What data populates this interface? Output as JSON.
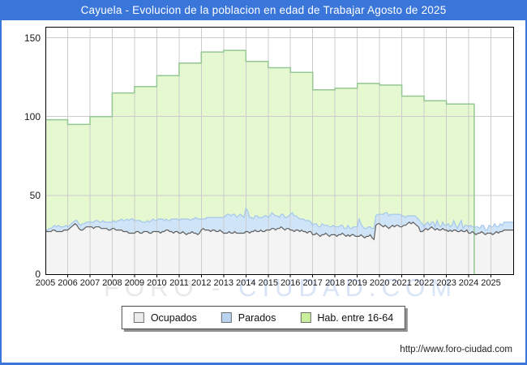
{
  "window": {
    "title": "Cayuela - Evolucion de la poblacion en edad de Trabajar Agosto de 2025"
  },
  "watermark": {
    "left": "FORO",
    "dash": "-",
    "right": "CIUDAD.COM"
  },
  "footer": {
    "url": "http://www.foro-ciudad.com"
  },
  "colors": {
    "banner": "#3a75d9",
    "grid": "#cccccc",
    "frame": "#000000",
    "hab_fill": "#e6f8d0",
    "hab_line": "#94c794",
    "parados_fill": "#cfe4f7",
    "parados_line": "#a4c7ec",
    "ocupados_fill": "#f4f4f4",
    "ocupados_line": "#5f5f5f"
  },
  "chart_data": {
    "type": "area",
    "title": "Cayuela - Evolucion de la poblacion en edad de Trabajar Agosto de 2025",
    "xlabel": "",
    "ylabel": "",
    "xlim": [
      2005,
      2026
    ],
    "ylim": [
      0,
      157
    ],
    "grid": true,
    "legend_position": "bottom-center",
    "y_ticks": [
      0,
      50,
      100,
      150
    ],
    "x_tick_labels": [
      "2005",
      "2006",
      "2007",
      "2008",
      "2009",
      "2010",
      "2011",
      "2012",
      "2013",
      "2014",
      "2015",
      "2016",
      "2017",
      "2018",
      "2019",
      "2020",
      "2021",
      "2022",
      "2023",
      "2024",
      "2025"
    ],
    "legend": [
      {
        "label": "Ocupados",
        "fill": "#ececec",
        "stroke": "#6e6e6e"
      },
      {
        "label": "Parados",
        "fill": "#b9d3f0",
        "stroke": "#6e6e6e"
      },
      {
        "label": "Hab. entre 16-64",
        "fill": "#c9ee9d",
        "stroke": "#6e6e6e"
      }
    ],
    "series": [
      {
        "name": "Hab. entre 16-64",
        "type": "step-annual",
        "start_year": 2005,
        "end_x": 2024.25,
        "fill": "#e6f8d0",
        "stroke": "#94c794",
        "values": [
          98,
          95,
          100,
          115,
          119,
          126,
          134,
          141,
          142,
          135,
          131,
          128,
          117,
          118,
          121,
          120,
          113,
          110,
          108,
          108
        ]
      },
      {
        "name": "Parados",
        "type": "monthly-stacked-on-ocupados",
        "start_year": 2005,
        "fill": "#cfe4f7",
        "stroke": "#a4c7ec",
        "values": [
          1,
          1,
          2,
          2,
          2,
          3,
          3,
          4,
          3,
          3,
          2,
          3,
          2,
          2,
          2,
          2,
          2,
          3,
          3,
          3,
          4,
          3,
          3,
          3,
          3,
          3,
          4,
          4,
          4,
          3,
          4,
          5,
          4,
          4,
          5,
          5,
          4,
          5,
          5,
          6,
          6,
          7,
          7,
          7,
          8,
          8,
          9,
          9,
          8,
          7,
          7,
          8,
          7,
          6,
          6,
          7,
          7,
          8,
          8,
          7,
          7,
          8,
          9,
          8,
          7,
          7,
          6,
          7,
          8,
          9,
          8,
          8,
          8,
          9,
          8,
          9,
          10,
          9,
          8,
          8,
          9,
          10,
          10,
          9,
          7,
          6,
          7,
          8,
          8,
          9,
          8,
          8,
          9,
          9,
          8,
          9,
          10,
          11,
          12,
          11,
          11,
          12,
          11,
          10,
          11,
          12,
          11,
          10,
          15,
          13,
          10,
          9,
          8,
          9,
          10,
          9,
          8,
          9,
          10,
          9,
          8,
          9,
          10,
          9,
          9,
          8,
          7,
          8,
          9,
          8,
          7,
          8,
          10,
          11,
          10,
          9,
          8,
          8,
          7,
          8,
          7,
          8,
          7,
          6,
          6,
          7,
          6,
          5,
          6,
          7,
          6,
          5,
          6,
          6,
          5,
          6,
          5,
          6,
          5,
          6,
          5,
          4,
          5,
          6,
          5,
          4,
          5,
          6,
          6,
          11,
          7,
          6,
          6,
          5,
          6,
          5,
          6,
          7,
          6,
          6,
          6,
          7,
          8,
          8,
          9,
          8,
          8,
          7,
          8,
          7,
          7,
          8,
          7,
          6,
          5,
          5,
          4,
          5,
          4,
          5,
          5,
          5,
          6,
          5,
          2,
          3,
          5,
          2,
          3,
          4,
          2,
          5,
          3,
          2,
          4,
          3,
          3,
          5,
          2,
          4,
          6,
          3,
          2,
          5,
          6,
          2,
          4,
          3,
          4,
          5,
          3,
          4,
          5,
          4,
          3,
          4,
          5,
          3,
          2,
          5,
          4,
          5,
          6,
          3,
          4,
          5,
          4,
          5
        ]
      },
      {
        "name": "Ocupados",
        "type": "monthly",
        "start_year": 2005,
        "fill": "#f4f4f4",
        "stroke": "#5f5f5f",
        "values": [
          27,
          27,
          27,
          27,
          28,
          28,
          27,
          27,
          27,
          27,
          28,
          28,
          28,
          29,
          30,
          31,
          32,
          31,
          29,
          28,
          28,
          29,
          30,
          30,
          30,
          30,
          29,
          30,
          30,
          30,
          29,
          29,
          29,
          29,
          28,
          28,
          29,
          29,
          28,
          28,
          28,
          28,
          27,
          27,
          27,
          26,
          26,
          26,
          26,
          27,
          27,
          26,
          26,
          27,
          27,
          27,
          26,
          26,
          27,
          27,
          27,
          27,
          26,
          27,
          27,
          28,
          28,
          27,
          27,
          26,
          27,
          27,
          26,
          26,
          27,
          26,
          25,
          26,
          26,
          27,
          26,
          26,
          25,
          26,
          28,
          29,
          28,
          28,
          28,
          27,
          28,
          28,
          27,
          27,
          28,
          27,
          26,
          26,
          26,
          27,
          26,
          26,
          27,
          26,
          26,
          26,
          26,
          26,
          27,
          27,
          26,
          27,
          27,
          28,
          27,
          27,
          28,
          27,
          27,
          28,
          28,
          28,
          29,
          29,
          28,
          29,
          29,
          30,
          29,
          28,
          29,
          29,
          28,
          28,
          27,
          28,
          28,
          27,
          28,
          27,
          27,
          26,
          27,
          27,
          25,
          25,
          26,
          25,
          24,
          25,
          25,
          26,
          25,
          24,
          25,
          25,
          25,
          24,
          25,
          25,
          26,
          25,
          24,
          25,
          24,
          25,
          25,
          24,
          24,
          24,
          25,
          24,
          23,
          24,
          24,
          25,
          23,
          22,
          31,
          32,
          32,
          31,
          30,
          31,
          30,
          29,
          30,
          31,
          30,
          31,
          31,
          30,
          30,
          31,
          31,
          32,
          33,
          32,
          33,
          32,
          31,
          30,
          27,
          27,
          28,
          29,
          28,
          29,
          30,
          29,
          28,
          29,
          28,
          28,
          29,
          28,
          28,
          27,
          28,
          27,
          28,
          28,
          27,
          27,
          28,
          27,
          27,
          28,
          26,
          26,
          27,
          26,
          25,
          26,
          26,
          27,
          26,
          25,
          26,
          26,
          26,
          25,
          26,
          27,
          26,
          27,
          27,
          28
        ]
      }
    ]
  }
}
